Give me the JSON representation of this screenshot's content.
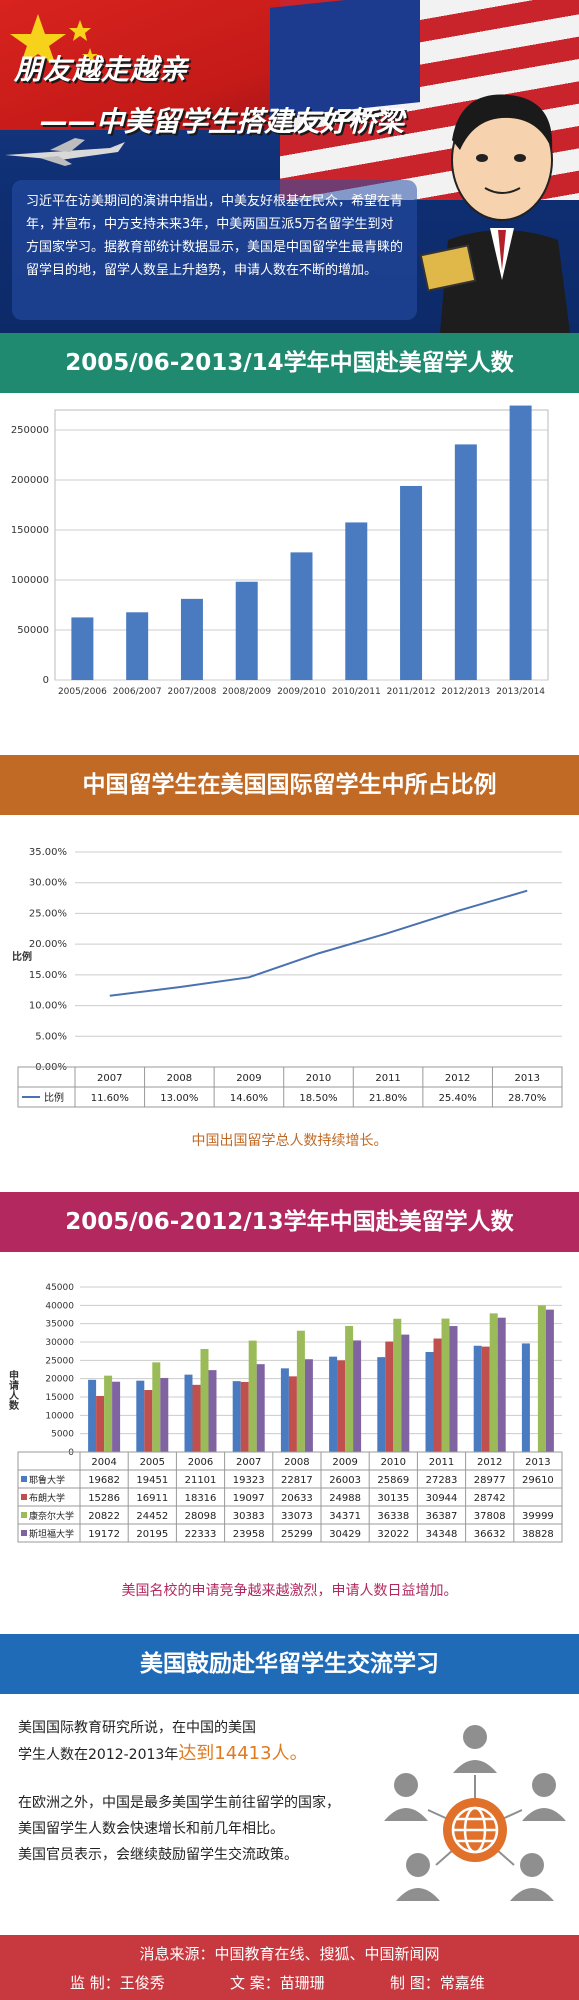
{
  "header": {
    "title_line1": "朋友越走越亲",
    "title_line2": "——中美留学生搭建友好桥梁",
    "intro": "习近平在访美期间的演讲中指出，中美友好根基在民众，希望在青年，并宣布，中方支持未来3年，中美两国互派5万名留学生到对方国家学习。据教育部统计数据显示，美国是中国留学生最青睐的留学目的地，留学人数呈上升趋势，申请人数在不断的增加。"
  },
  "section1": {
    "heading": "2005/06-2013/14学年中国赴美留学人数",
    "color": "#1f8a6f"
  },
  "section2": {
    "heading": "中国留学生在美国国际留学生中所占比例",
    "color": "#c06a25",
    "caption": "中国出国留学总人数持续增长。"
  },
  "section3": {
    "heading": "2005/06-2012/13学年中国赴美留学人数",
    "color": "#b3285f",
    "caption": "美国名校的申请竞争越来越激烈，申请人数日益增加。"
  },
  "section4": {
    "heading": "美国鼓励赴华留学生交流学习",
    "color": "#1f6bb8",
    "para1_line1": "美国国际教育研究所说，在中国的美国",
    "para1_line2_prefix": "学生人数在2012-2013年",
    "para1_highlight": "达到14413人。",
    "para2_line1": "在欧洲之外，中国是最多美国学生前往留学的国家，",
    "para2_line2": "美国留学生人数会快速增长和前几年相比。",
    "para2_line3": "美国官员表示，会继续鼓励留学生交流政策。"
  },
  "footer": {
    "sources": "消息来源：中国教育在线、搜狐、中国新闻网",
    "supervisor": "监  制：王俊秀",
    "copy": "文  案：苗珊珊",
    "design": "制  图：常嘉维"
  },
  "chart_data": [
    {
      "type": "bar",
      "categories": [
        "2005/2006",
        "2006/2007",
        "2007/2008",
        "2008/2009",
        "2009/2010",
        "2010/2011",
        "2011/2012",
        "2012/2013",
        "2013/2014"
      ],
      "values": [
        62582,
        67723,
        81127,
        98235,
        127628,
        157558,
        194029,
        235597,
        274439
      ],
      "ylim": [
        0,
        250000
      ],
      "yticks": [
        0,
        50000,
        100000,
        150000,
        200000,
        250000
      ],
      "color": "#4a7bc0",
      "grid": true
    },
    {
      "type": "line",
      "categories": [
        "2007",
        "2008",
        "2009",
        "2010",
        "2011",
        "2012",
        "2013"
      ],
      "series": [
        {
          "name": "比例",
          "values": [
            11.6,
            13.0,
            14.6,
            18.5,
            21.8,
            25.4,
            28.7
          ]
        }
      ],
      "table_values": [
        "11.60%",
        "13.00%",
        "14.60%",
        "18.50%",
        "21.80%",
        "25.40%",
        "28.70%"
      ],
      "ylabel": "比例",
      "ylim": [
        0,
        35
      ],
      "yticks": [
        "0.00%",
        "5.00%",
        "10.00%",
        "15.00%",
        "20.00%",
        "25.00%",
        "30.00%",
        "35.00%"
      ],
      "color": "#4a72b0",
      "grid": true
    },
    {
      "type": "bar",
      "categories": [
        "2004",
        "2005",
        "2006",
        "2007",
        "2008",
        "2009",
        "2010",
        "2011",
        "2012",
        "2013"
      ],
      "ylabel": "申请人数",
      "ylim": [
        0,
        45000
      ],
      "yticks": [
        0,
        5000,
        10000,
        15000,
        20000,
        25000,
        30000,
        35000,
        40000,
        45000
      ],
      "series": [
        {
          "name": "耶鲁大学",
          "color": "#4a7bc0",
          "values": [
            19682,
            19451,
            21101,
            19323,
            22817,
            26003,
            25869,
            27283,
            28977,
            29610
          ]
        },
        {
          "name": "布朗大学",
          "color": "#c0504d",
          "values": [
            15286,
            16911,
            18316,
            19097,
            20633,
            24988,
            30135,
            30944,
            28742,
            null
          ]
        },
        {
          "name": "康奈尔大学",
          "color": "#9bbb59",
          "values": [
            20822,
            24452,
            28098,
            30383,
            33073,
            34371,
            36338,
            36387,
            37808,
            39999
          ]
        },
        {
          "name": "斯坦福大学",
          "color": "#8064a2",
          "values": [
            19172,
            20195,
            22333,
            23958,
            25299,
            30429,
            32022,
            34348,
            36632,
            38828
          ]
        }
      ],
      "grid": true
    }
  ]
}
